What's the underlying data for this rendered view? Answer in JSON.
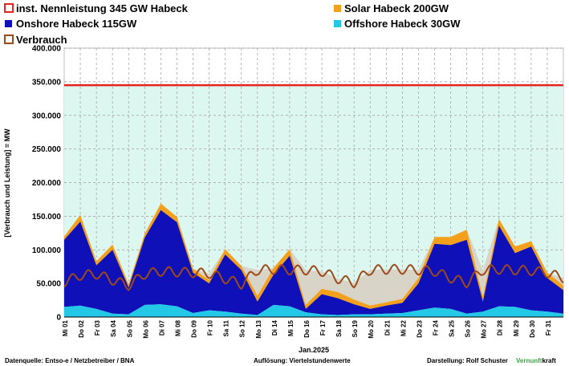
{
  "chart_data": {
    "type": "area",
    "ylabel": "[Verbrauch und Leistung] = MW",
    "xlabel": "Jan.2025",
    "ylim": [
      0,
      400000
    ],
    "y_ticks": [
      "0",
      "50.000",
      "100.000",
      "150.000",
      "200.000",
      "250.000",
      "300.000",
      "350.000",
      "400.000"
    ],
    "y_tick_values": [
      0,
      50000,
      100000,
      150000,
      200000,
      250000,
      300000,
      350000,
      400000
    ],
    "x_ticks": [
      "Mi 01",
      "Do 02",
      "Fr 03",
      "Sa 04",
      "So 05",
      "Mo 06",
      "Di 07",
      "Mi 08",
      "Do 09",
      "Fr 10",
      "Sa 11",
      "So 12",
      "Mo 13",
      "Di 14",
      "Mi 15",
      "Do 16",
      "Fr 17",
      "Sa 18",
      "So 19",
      "Mo 20",
      "Di 21",
      "Mi 22",
      "Do 23",
      "Fr 24",
      "Sa 25",
      "So 26",
      "Mo 27",
      "Di 28",
      "Mi 29",
      "Do 30",
      "Fr 31"
    ],
    "installed_capacity_mw": 345000,
    "legend": [
      {
        "label": "inst. Nennleistung 345 GW Habeck",
        "color": "#e8231e",
        "kind": "outline"
      },
      {
        "label": "Solar Habeck 200GW",
        "color": "#f5a01a",
        "kind": "fill"
      },
      {
        "label": "Onshore Habeck 115GW",
        "color": "#1010b8",
        "kind": "fill"
      },
      {
        "label": "Offshore Habeck 30GW",
        "color": "#22c8e6",
        "kind": "fill"
      },
      {
        "label": "Verbrauch",
        "color": "#9c4a1a",
        "kind": "outline"
      }
    ],
    "series": [
      {
        "name": "Offshore Habeck 30GW",
        "color": "#22c8e6",
        "values": [
          15000,
          17000,
          12000,
          5000,
          4000,
          18000,
          19000,
          16000,
          6000,
          10000,
          8000,
          5000,
          3000,
          18000,
          16000,
          7000,
          4000,
          3000,
          4000,
          4000,
          5000,
          6000,
          10000,
          14000,
          12000,
          5000,
          8000,
          16000,
          15000,
          10000,
          8000,
          5000
        ]
      },
      {
        "name": "Onshore Habeck 115GW",
        "color": "#1010b8",
        "values": [
          100000,
          125000,
          65000,
          95000,
          40000,
          100000,
          140000,
          125000,
          60000,
          40000,
          85000,
          65000,
          20000,
          45000,
          75000,
          5000,
          30000,
          25000,
          15000,
          8000,
          12000,
          15000,
          40000,
          95000,
          95000,
          110000,
          15000,
          120000,
          80000,
          95000,
          50000,
          35000
        ]
      },
      {
        "name": "Solar Habeck 200GW",
        "color": "#f5a01a",
        "values": [
          5000,
          10000,
          6000,
          8000,
          5000,
          6000,
          10000,
          8000,
          6000,
          5000,
          8000,
          6000,
          9000,
          10000,
          10000,
          6000,
          8000,
          9000,
          7000,
          5000,
          5000,
          6000,
          8000,
          10000,
          12000,
          15000,
          7000,
          10000,
          10000,
          8000,
          8000,
          7000
        ]
      },
      {
        "name": "Verbrauch",
        "color": "#9c4a1a",
        "values": [
          52000,
          62000,
          64000,
          55000,
          47000,
          64000,
          68000,
          67000,
          66000,
          65000,
          57000,
          49000,
          70000,
          71000,
          70000,
          70000,
          68000,
          57000,
          51000,
          70000,
          71000,
          71000,
          70000,
          68000,
          58000,
          51000,
          70000,
          71000,
          70000,
          69000,
          66000,
          58000
        ]
      }
    ]
  },
  "footer": {
    "source": "Datenquelle: Entso-e  / Netzbetreiber / BNA",
    "resolution": "Auflösung: Viertelstundenwerte",
    "author": "Darstellung:  Rolf Schuster",
    "brand_a": "Vernunft",
    "brand_b": "kraft",
    "brand_color": "#3aa640"
  }
}
